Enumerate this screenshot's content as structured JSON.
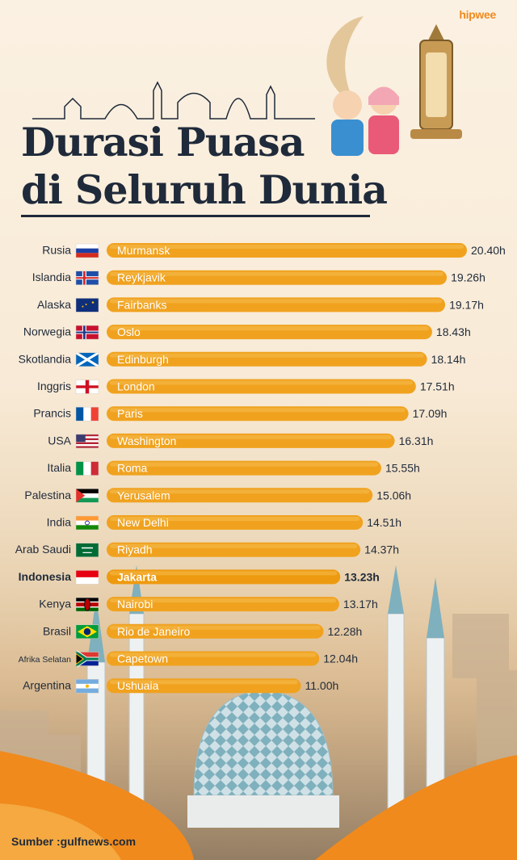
{
  "brand": "hipwee",
  "title_line1": "Durasi Puasa",
  "title_line2": "di Seluruh Dunia",
  "source": "Sumber :gulfnews.com",
  "colors": {
    "bar": "#f0a21f",
    "bar_light": "#f6c45a",
    "text": "#1f2a3a",
    "accent": "#ef8a1e"
  },
  "chart_data": {
    "type": "bar",
    "orientation": "horizontal",
    "title": "Durasi Puasa di Seluruh Dunia",
    "value_unit": "h",
    "highlight": "Indonesia",
    "rows": [
      {
        "country": "Rusia",
        "flag": "russia-flag-icon",
        "city": "Murmansk",
        "value": 20.4,
        "label": "20.40h"
      },
      {
        "country": "Islandia",
        "flag": "iceland-flag-icon",
        "city": "Reykjavik",
        "value": 19.26,
        "label": "19.26h"
      },
      {
        "country": "Alaska",
        "flag": "alaska-flag-icon",
        "city": "Fairbanks",
        "value": 19.17,
        "label": "19.17h"
      },
      {
        "country": "Norwegia",
        "flag": "norway-flag-icon",
        "city": "Oslo",
        "value": 18.43,
        "label": "18.43h"
      },
      {
        "country": "Skotlandia",
        "flag": "scotland-flag-icon",
        "city": "Edinburgh",
        "value": 18.14,
        "label": "18.14h"
      },
      {
        "country": "Inggris",
        "flag": "england-flag-icon",
        "city": "London",
        "value": 17.51,
        "label": "17.51h"
      },
      {
        "country": "Prancis",
        "flag": "france-flag-icon",
        "city": "Paris",
        "value": 17.09,
        "label": "17.09h"
      },
      {
        "country": "USA",
        "flag": "usa-flag-icon",
        "city": "Washington",
        "value": 16.31,
        "label": "16.31h"
      },
      {
        "country": "Italia",
        "flag": "italy-flag-icon",
        "city": "Roma",
        "value": 15.55,
        "label": "15.55h"
      },
      {
        "country": "Palestina",
        "flag": "palestine-flag-icon",
        "city": "Yerusalem",
        "value": 15.06,
        "label": "15.06h"
      },
      {
        "country": "India",
        "flag": "india-flag-icon",
        "city": "New Delhi",
        "value": 14.51,
        "label": "14.51h"
      },
      {
        "country": "Arab Saudi",
        "flag": "saudi-flag-icon",
        "city": "Riyadh",
        "value": 14.37,
        "label": "14.37h"
      },
      {
        "country": "Indonesia",
        "flag": "indonesia-flag-icon",
        "city": "Jakarta",
        "value": 13.23,
        "label": "13.23h"
      },
      {
        "country": "Kenya",
        "flag": "kenya-flag-icon",
        "city": "Nairobi",
        "value": 13.17,
        "label": "13.17h"
      },
      {
        "country": "Brasil",
        "flag": "brazil-flag-icon",
        "city": "Rio de Janeiro",
        "value": 12.28,
        "label": "12.28h"
      },
      {
        "country": "Afrika Selatan",
        "flag": "south-africa-flag-icon",
        "city": "Capetown",
        "value": 12.04,
        "label": "12.04h"
      },
      {
        "country": "Argentina",
        "flag": "argentina-flag-icon",
        "city": "Ushuaia",
        "value": 11.0,
        "label": "11.00h"
      }
    ]
  }
}
